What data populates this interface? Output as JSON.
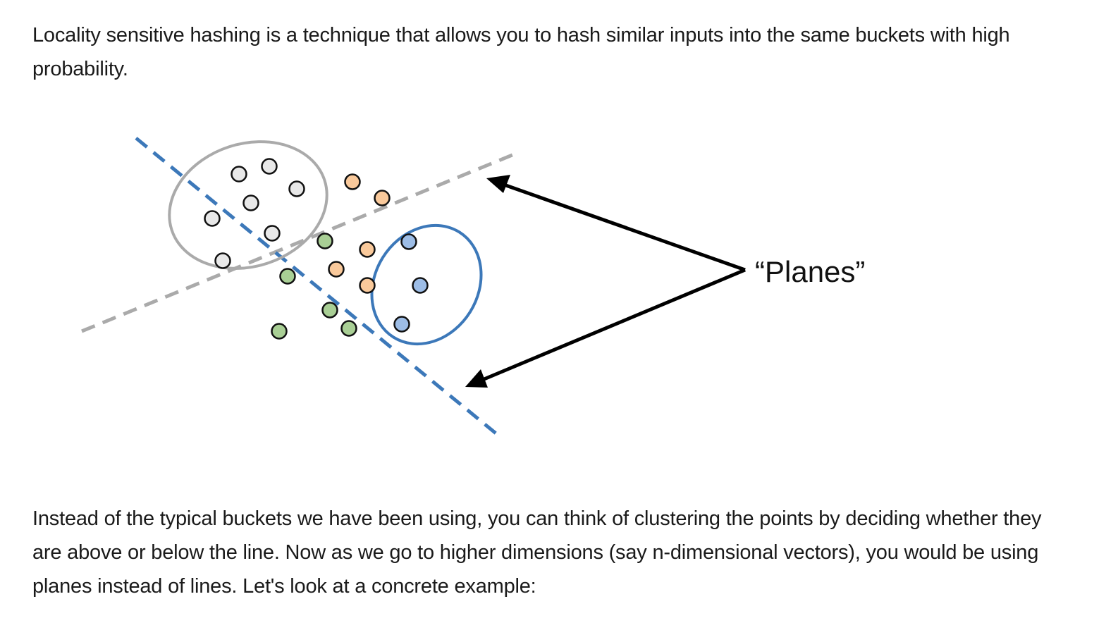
{
  "paragraphs": {
    "intro": "Locality sensitive hashing is a technique that allows you to hash similar inputs into the same buckets with high\nprobability.",
    "followup": "Instead of the typical buckets we have been using, you can think of clustering the points by deciding whether they\nare above or below the line. Now as we go to higher dimensions (say n-dimensional vectors), you would be using\nplanes instead of lines. Let's look at a concrete example:"
  },
  "figure": {
    "label": "“Planes”",
    "colors": {
      "gray_point": "#e8e8e8",
      "orange_point": "#f9c99b",
      "green_point": "#a9cf95",
      "blue_point": "#9dbde6",
      "gray_plane": "#aaaaaa",
      "blue_plane": "#3c78b9",
      "gray_ellipse": "#aaaaaa",
      "blue_ellipse": "#3c78b9",
      "arrow": "#000000"
    }
  }
}
